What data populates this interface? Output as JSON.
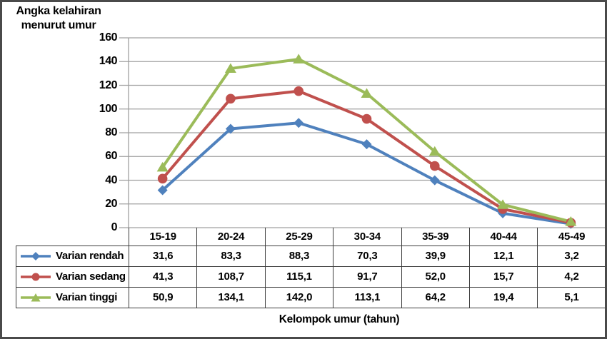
{
  "figure": {
    "y_axis_title_line1": "Angka kelahiran",
    "y_axis_title_line2": "menurut umur",
    "x_axis_title": "Kelompok umur (tahun)"
  },
  "chart_data": {
    "type": "line",
    "title": "Angka kelahiran menurut umur",
    "xlabel": "Kelompok umur (tahun)",
    "ylabel": "Angka kelahiran menurut umur",
    "categories": [
      "15-19",
      "20-24",
      "25-29",
      "30-34",
      "35-39",
      "40-44",
      "45-49"
    ],
    "ylim": [
      0,
      160
    ],
    "y_ticks": [
      0,
      20,
      40,
      60,
      80,
      100,
      120,
      140,
      160
    ],
    "grid": true,
    "grid_color": "#A0A0A0",
    "axis_color": "#A0A0A0",
    "legend_position": "table-left",
    "series": [
      {
        "name": "Varian rendah",
        "marker": "diamond",
        "color": "#4F81BD",
        "values": [
          31.6,
          83.3,
          88.3,
          70.3,
          39.9,
          12.1,
          3.2
        ],
        "display_values": [
          "31,6",
          "83,3",
          "88,3",
          "70,3",
          "39,9",
          "12,1",
          "3,2"
        ]
      },
      {
        "name": "Varian sedang",
        "marker": "circle",
        "color": "#C0504D",
        "values": [
          41.3,
          108.7,
          115.1,
          91.7,
          52.0,
          15.7,
          4.2
        ],
        "display_values": [
          "41,3",
          "108,7",
          "115,1",
          "91,7",
          "52,0",
          "15,7",
          "4,2"
        ]
      },
      {
        "name": "Varian tinggi",
        "marker": "triangle",
        "color": "#9BBB59",
        "values": [
          50.9,
          134.1,
          142.0,
          113.1,
          64.2,
          19.4,
          5.1
        ],
        "display_values": [
          "50,9",
          "134,1",
          "142,0",
          "113,1",
          "64,2",
          "19,4",
          "5,1"
        ]
      }
    ]
  }
}
